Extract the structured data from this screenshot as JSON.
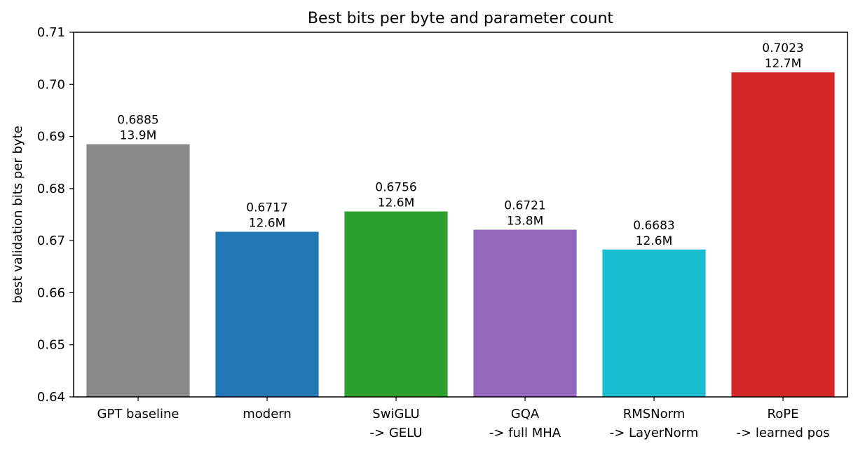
{
  "chart_data": {
    "type": "bar",
    "title": "Best bits per byte and parameter count",
    "xlabel": "",
    "ylabel": "best validation bits per byte",
    "ylim": [
      0.64,
      0.71
    ],
    "yticks": [
      "0.64",
      "0.65",
      "0.66",
      "0.67",
      "0.68",
      "0.69",
      "0.70",
      "0.71"
    ],
    "grid": false,
    "categories": [
      [
        "GPT baseline"
      ],
      [
        "modern"
      ],
      [
        "SwiGLU",
        "-> GELU"
      ],
      [
        "GQA",
        "-> full MHA"
      ],
      [
        "RMSNorm",
        "-> LayerNorm"
      ],
      [
        "RoPE",
        "-> learned pos"
      ]
    ],
    "values": [
      0.6885,
      0.6717,
      0.6756,
      0.6721,
      0.6683,
      0.7023
    ],
    "value_labels": [
      "0.6885",
      "0.6717",
      "0.6756",
      "0.6721",
      "0.6683",
      "0.7023"
    ],
    "param_labels": [
      "13.9M",
      "12.6M",
      "12.6M",
      "13.8M",
      "12.6M",
      "12.7M"
    ],
    "colors": [
      "#898989",
      "#2077b4",
      "#2ca02c",
      "#9467bd",
      "#18bdcf",
      "#d62728"
    ]
  }
}
